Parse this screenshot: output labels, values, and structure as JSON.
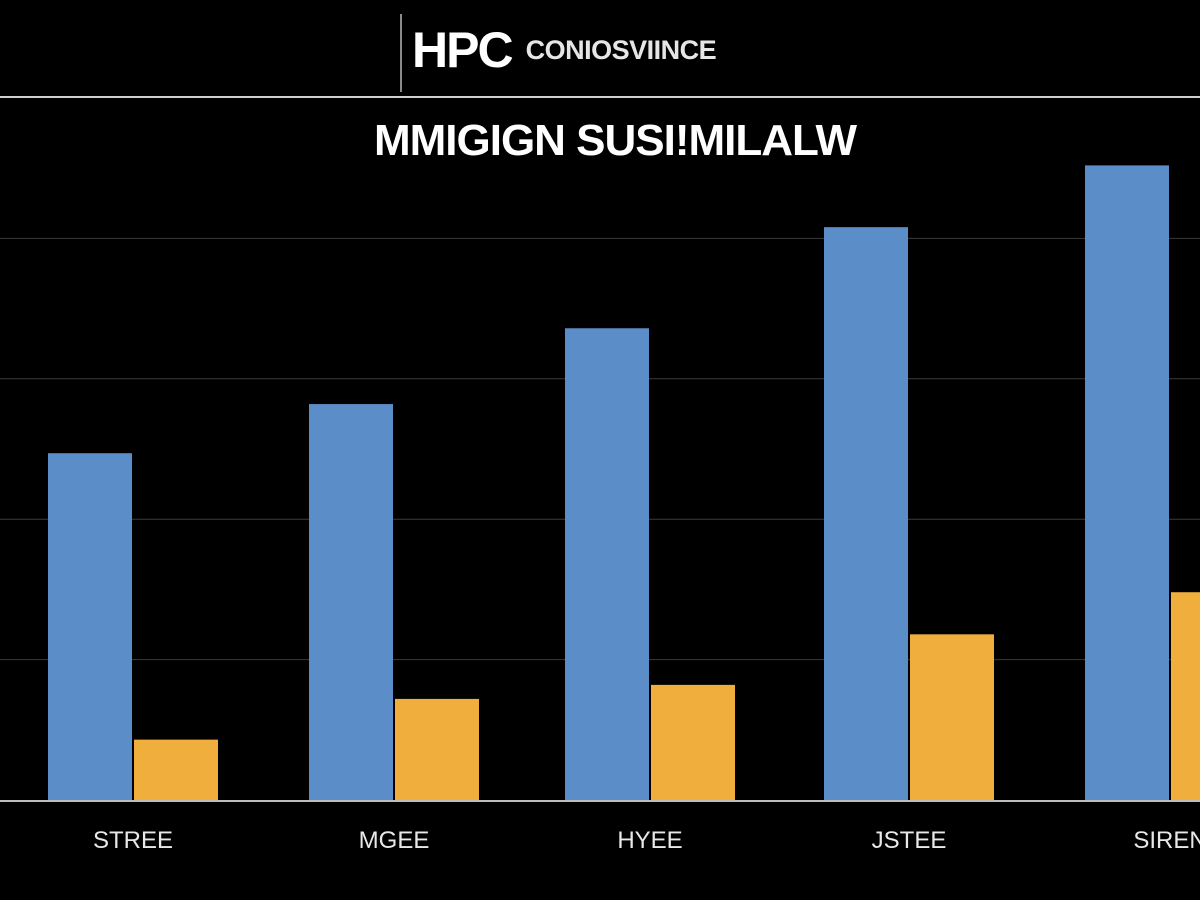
{
  "header": {
    "brand_mark": "HPC",
    "brand_name": "CONIOSVIINCE"
  },
  "chart_data": {
    "type": "bar",
    "title": "MMIGIGN SUSI!MILALW",
    "xlabel": "",
    "ylabel": "",
    "categories": [
      "STREE",
      "MGEE",
      "HYEE",
      "JSTEE",
      "SIREN"
    ],
    "series": [
      {
        "values": [
          247,
          282,
          336,
          408,
          452
        ],
        "color": "#5b8dc8"
      },
      {
        "values": [
          43,
          72,
          82,
          118,
          148
        ],
        "color": "#f0ae3c"
      }
    ],
    "ylim": [
      0,
      500
    ],
    "grid": true,
    "legend": "none"
  }
}
